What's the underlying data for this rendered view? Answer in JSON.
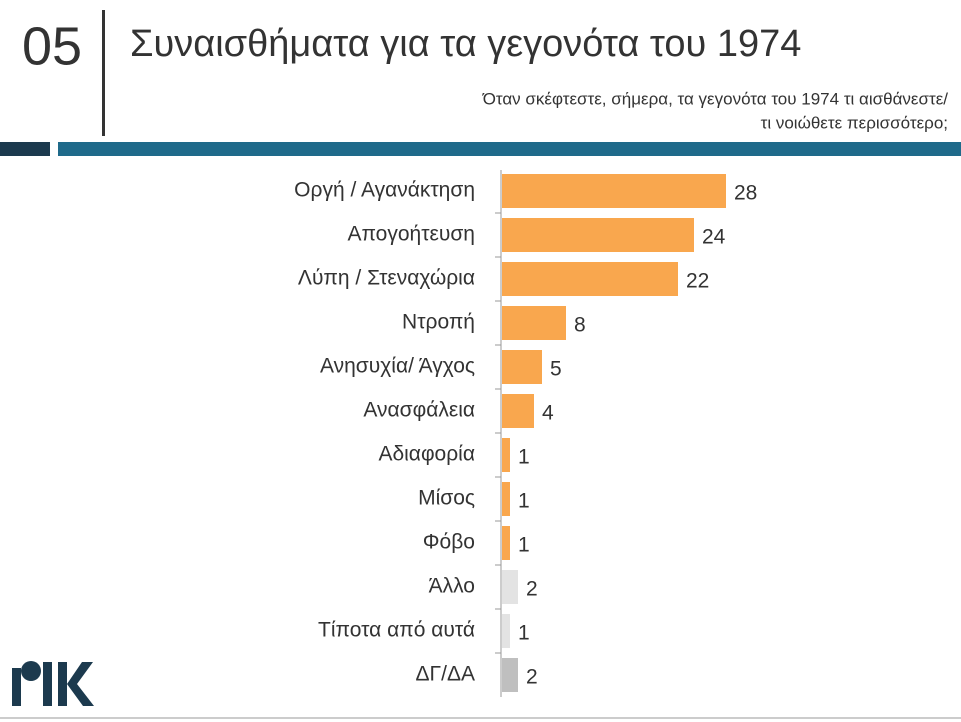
{
  "slide_number": "05",
  "chart_data": {
    "type": "bar",
    "orientation": "horizontal",
    "title": "Συναισθήματα για τα γεγονότα του 1974",
    "subtitle": [
      "Όταν σκέφτεστε, σήμερα, τα γεγονότα του 1974 τι αισθάνεστε/",
      "τι νοιώθετε περισσότερο;"
    ],
    "categories": [
      "Οργή / Αγανάκτηση",
      "Απογοήτευση",
      "Λύπη / Στεναχώρια",
      "Ντροπή",
      "Ανησυχία/ Άγχος",
      "Ανασφάλεια",
      "Αδιαφορία",
      "Μίσος",
      "Φόβο",
      "Άλλο",
      "Τίποτα από αυτά",
      "ΔΓ/ΔΑ"
    ],
    "values": [
      28,
      24,
      22,
      8,
      5,
      4,
      1,
      1,
      1,
      2,
      1,
      2
    ],
    "colors": [
      "#f9a74e",
      "#f9a74e",
      "#f9a74e",
      "#f9a74e",
      "#f9a74e",
      "#f9a74e",
      "#f9a74e",
      "#f9a74e",
      "#f9a74e",
      "#e3e3e3",
      "#e3e3e3",
      "#bfbfbf"
    ]
  }
}
